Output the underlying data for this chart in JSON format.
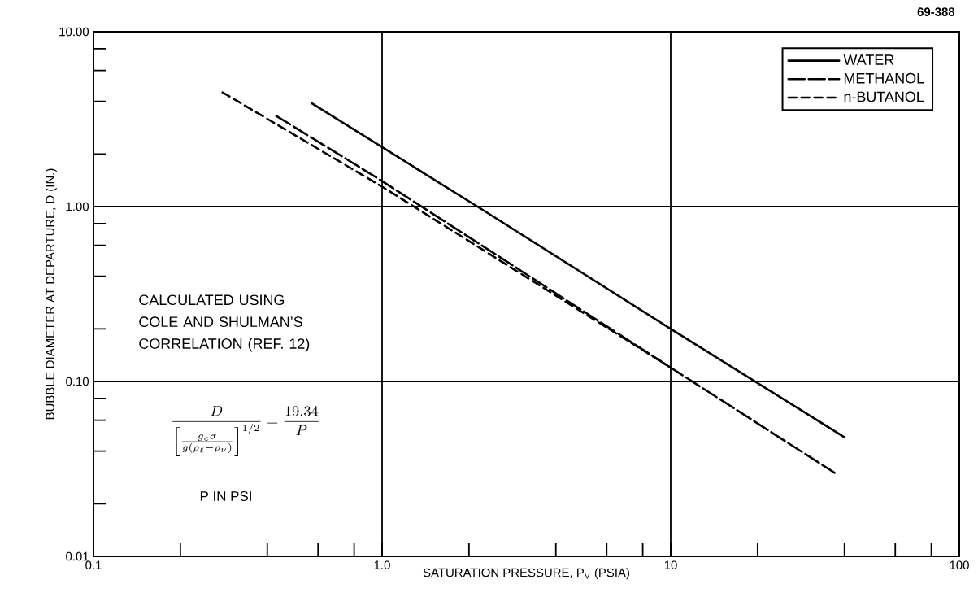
{
  "chart_data": {
    "type": "line",
    "xlabel": "SATURATION PRESSURE, P$_{V}$ (PSIA)",
    "ylabel": "BUBBLE DIAMETER AT DEPARTURE, D (IN.)",
    "log": "xy",
    "xlim": [
      0.1,
      100
    ],
    "ylim": [
      0.01,
      10
    ],
    "xticks": [
      0.1,
      {
        "value": 0.2,
        "label": null
      },
      {
        "value": 0.4,
        "label": null
      },
      {
        "value": 0.6,
        "label": null
      },
      {
        "value": 0.8,
        "label": null
      },
      {
        "value": 1,
        "label": "1.0"
      },
      {
        "value": 2,
        "label": null
      },
      {
        "value": 4,
        "label": null
      },
      {
        "value": 6,
        "label": null
      },
      {
        "value": 8,
        "label": null
      },
      10,
      {
        "value": 20,
        "label": null
      },
      {
        "value": 40,
        "label": null
      },
      {
        "value": 60,
        "label": null
      },
      {
        "value": 80,
        "label": null
      },
      100
    ],
    "yticks": [
      0.01,
      {
        "value": 0.02,
        "label": null
      },
      {
        "value": 0.04,
        "label": null
      },
      {
        "value": 0.06,
        "label": null
      },
      {
        "value": 0.08,
        "label": null
      },
      {
        "value": 0.1,
        "label": "0.10"
      },
      {
        "value": 0.2,
        "label": null
      },
      {
        "value": 0.4,
        "label": null
      },
      {
        "value": 0.6,
        "label": null
      },
      {
        "value": 0.8,
        "label": null
      },
      {
        "value": 1,
        "label": "1.00"
      },
      {
        "value": 2,
        "label": null
      },
      {
        "value": 4,
        "label": null
      },
      {
        "value": 6,
        "label": null
      },
      {
        "value": 8,
        "label": null
      },
      {
        "value": 10,
        "label": "10.00"
      }
    ],
    "grid": true,
    "legend": "top right",
    "marker": "none",
    "series": [
      {
        "name": "WATER",
        "color": "#000000",
        "line_style": "solid",
        "x": [
          0.57,
          2.14,
          10,
          40
        ],
        "values": [
          3.9,
          1,
          0.2,
          0.048
        ]
      },
      {
        "name": "METHANOL",
        "color": "#000000",
        "line_style": "dashed",
        "x": [
          0.43,
          1,
          10,
          37
        ],
        "values": [
          3.3,
          1.4,
          0.12,
          0.03
        ]
      },
      {
        "name": "n-BUTANOL",
        "color": "#000000",
        "line_style": "dashed",
        "x": [
          0.28,
          1,
          10
        ],
        "values": [
          4.5,
          1.3,
          0.12
        ]
      }
    ],
    "annotations": [
      "69-388",
      "CALCULATED USING COLE AND SHULMAN’S CORRELATION (REF. 12)",
      "\\frac{D}{\\left[\\frac{g_{c}\\sigma}{g(\\rho_{\\ell}-\\rho_{\\nu})}\\right]^{1/2}}=\\frac{19.34}{P}",
      "P IN PSI"
    ]
  }
}
